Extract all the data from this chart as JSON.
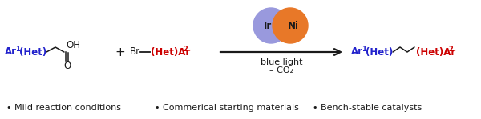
{
  "bg_color": "#ffffff",
  "blue": "#2222cc",
  "red": "#cc0000",
  "black": "#1a1a1a",
  "ir_color": "#9999dd",
  "ni_color": "#e87828",
  "bullet_items": [
    "• Mild reaction conditions",
    "• Commerical starting materials",
    "• Bench-stable catalysts"
  ],
  "arrow_label_top": "blue light",
  "arrow_label_bot": "– CO₂",
  "ir_label": "Ir",
  "ni_label": "Ni",
  "figsize": [
    6.0,
    1.49
  ],
  "dpi": 100
}
